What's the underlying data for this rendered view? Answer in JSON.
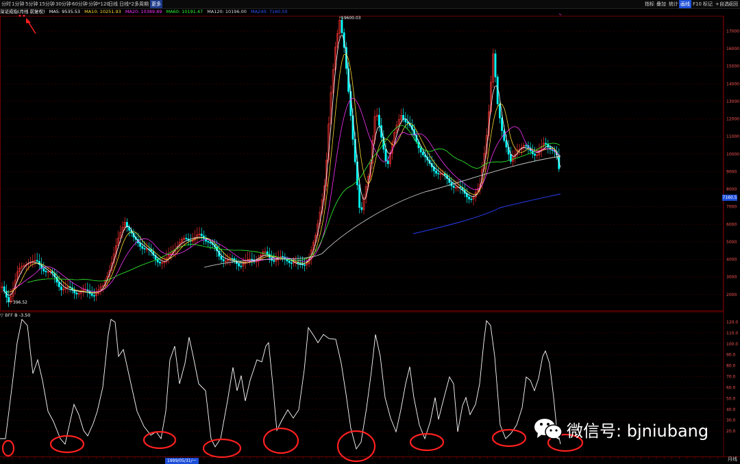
{
  "toolbar": {
    "timeframes": [
      "分时",
      "1分钟",
      "5分钟",
      "15分钟",
      "30分钟",
      "60分钟",
      "分钟*120",
      "日线",
      "日线*2",
      "多周期"
    ],
    "more": "更多",
    "right": [
      "指标",
      "叠加",
      "统计",
      "画线",
      "F10",
      "标记",
      "+自选",
      "返回"
    ],
    "active_right": "画线",
    "window_buttons": [
      "–",
      "□",
      "×"
    ]
  },
  "main": {
    "title": "深证成指(月线 前复权)",
    "mas": [
      {
        "label": "MA5: 9535.53",
        "color": "#ffffff"
      },
      {
        "label": "MA10: 10251.93",
        "color": "#ffdd33"
      },
      {
        "label": "MA20: 10389.89",
        "color": "#ff33ff"
      },
      {
        "label": "MA60: 10191.47",
        "color": "#33ff33"
      },
      {
        "label": "MA120: 10196.00",
        "color": "#cccccc"
      },
      {
        "label": "MA240: 7160.50",
        "color": "#3355ff"
      }
    ],
    "high_label": "19600.03",
    "low_label": "396.52",
    "price_tag": "7160.5",
    "y_ticks": [
      "17000",
      "16000",
      "15000",
      "14000",
      "13000",
      "12000",
      "11000",
      "10000",
      "9000",
      "8000",
      "7000",
      "6000",
      "5000",
      "4000",
      "3000",
      "2000"
    ]
  },
  "indicator": {
    "title": "▽ BFF",
    "value": "B -3.50",
    "y_ticks": [
      "120.0",
      "110.0",
      "100.0",
      "90.0",
      "80.0",
      "70.0",
      "60.0",
      "50.0",
      "40.0",
      "30.0",
      "20.0"
    ]
  },
  "timeline": {
    "date_label": "1999/05/31/一"
  },
  "corner_label": "月线",
  "watermark": {
    "text": "微信号: bjniubang"
  },
  "colors": {
    "up": "#ff3333",
    "down": "#00ffff",
    "grid": "#5a0000",
    "circle": "#ff2020"
  }
}
